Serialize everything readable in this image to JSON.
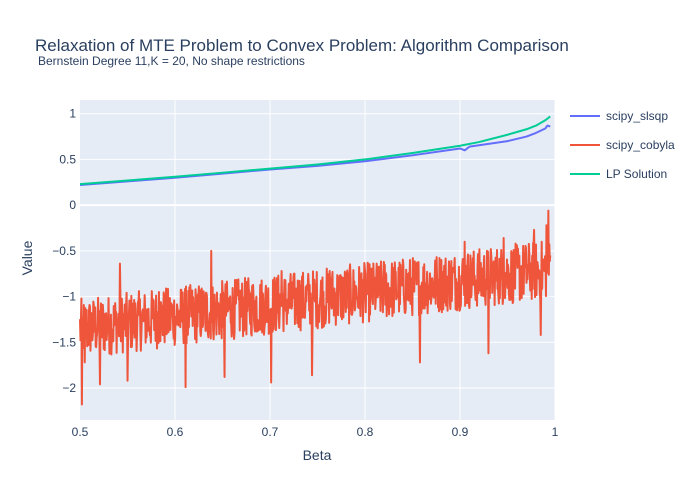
{
  "chart_data": {
    "type": "line",
    "title": "Relaxation of MTE Problem to Convex Problem: Algorithm Comparison",
    "subtitle": "Bernstein Degree 11,K = 20, No shape restrictions",
    "xlabel": "Beta",
    "ylabel": "Value",
    "xlim": [
      0.5,
      1.0
    ],
    "ylim": [
      -2.35,
      1.15
    ],
    "x_ticks": [
      0.5,
      0.6,
      0.7,
      0.8,
      0.9,
      1.0
    ],
    "x_tick_labels": [
      "0.5",
      "0.6",
      "0.7",
      "0.8",
      "0.9",
      "1"
    ],
    "y_ticks": [
      1,
      0.5,
      0,
      -0.5,
      -1,
      -1.5,
      -2
    ],
    "y_tick_labels": [
      "1",
      "0.5",
      "0",
      "−0.5",
      "−1",
      "−1.5",
      "−2"
    ],
    "grid": true,
    "legend_position": "top-right",
    "series": [
      {
        "name": "scipy_slsqp",
        "color": "#636efa",
        "x": [
          0.5,
          0.55,
          0.6,
          0.65,
          0.7,
          0.75,
          0.8,
          0.85,
          0.9,
          0.905,
          0.91,
          0.95,
          0.97,
          0.98,
          0.99,
          0.992,
          0.995
        ],
        "y": [
          0.22,
          0.26,
          0.3,
          0.345,
          0.39,
          0.43,
          0.48,
          0.545,
          0.62,
          0.6,
          0.64,
          0.7,
          0.75,
          0.79,
          0.84,
          0.87,
          0.86
        ]
      },
      {
        "name": "scipy_cobyla",
        "color": "#ef553b",
        "x_range": [
          0.5,
          0.995
        ],
        "n_points": 990,
        "trend_start": -1.35,
        "trend_end": -0.7,
        "noise_amplitude": 0.33,
        "spikes": [
          {
            "x": 0.502,
            "y": -2.18
          },
          {
            "x": 0.505,
            "y": -1.72
          },
          {
            "x": 0.521,
            "y": -1.96
          },
          {
            "x": 0.542,
            "y": -0.64
          },
          {
            "x": 0.55,
            "y": -1.92
          },
          {
            "x": 0.583,
            "y": -0.95
          },
          {
            "x": 0.611,
            "y": -1.99
          },
          {
            "x": 0.638,
            "y": -0.5
          },
          {
            "x": 0.652,
            "y": -1.88
          },
          {
            "x": 0.701,
            "y": -1.94
          },
          {
            "x": 0.712,
            "y": -0.72
          },
          {
            "x": 0.744,
            "y": -1.86
          },
          {
            "x": 0.763,
            "y": -0.72
          },
          {
            "x": 0.82,
            "y": -0.62
          },
          {
            "x": 0.858,
            "y": -1.72
          },
          {
            "x": 0.905,
            "y": -0.4
          },
          {
            "x": 0.93,
            "y": -1.62
          },
          {
            "x": 0.946,
            "y": -0.36
          },
          {
            "x": 0.978,
            "y": -0.27
          },
          {
            "x": 0.985,
            "y": -1.42
          },
          {
            "x": 0.991,
            "y": -0.22
          },
          {
            "x": 0.993,
            "y": -0.06
          },
          {
            "x": 0.995,
            "y": -0.55
          }
        ]
      },
      {
        "name": "LP Solution",
        "color": "#00cc96",
        "x": [
          0.5,
          0.55,
          0.6,
          0.65,
          0.7,
          0.75,
          0.8,
          0.85,
          0.9,
          0.92,
          0.95,
          0.97,
          0.98,
          0.99,
          0.995
        ],
        "y": [
          0.23,
          0.27,
          0.31,
          0.355,
          0.4,
          0.445,
          0.5,
          0.57,
          0.65,
          0.69,
          0.77,
          0.83,
          0.87,
          0.93,
          0.97
        ]
      }
    ]
  }
}
